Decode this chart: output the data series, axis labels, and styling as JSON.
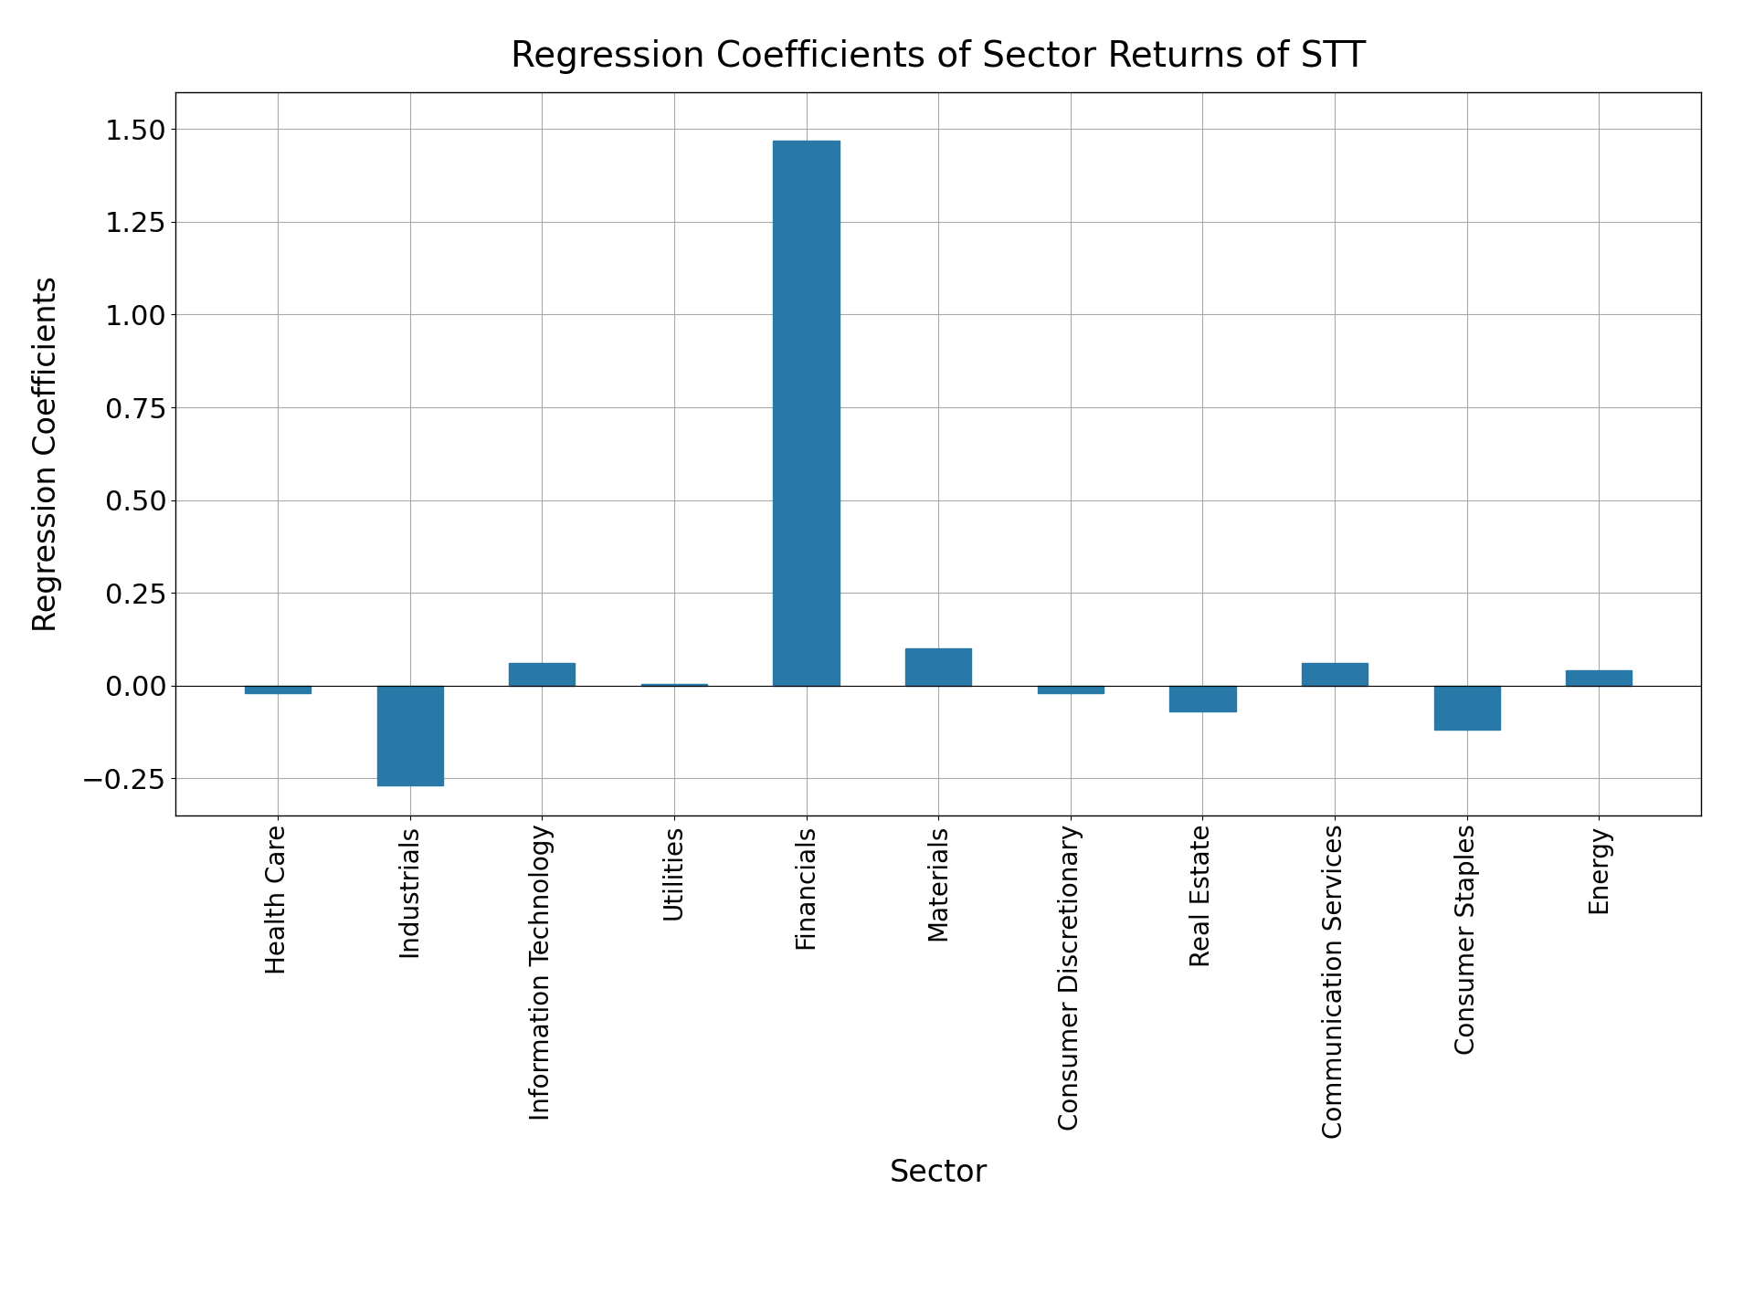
{
  "title": "Regression Coefficients of Sector Returns of STT",
  "xlabel": "Sector",
  "ylabel": "Regression Coefficients",
  "categories": [
    "Health Care",
    "Industrials",
    "Information Technology",
    "Utilities",
    "Financials",
    "Materials",
    "Consumer Discretionary",
    "Real Estate",
    "Communication Services",
    "Consumer Staples",
    "Energy"
  ],
  "values": [
    -0.02,
    -0.27,
    0.06,
    0.005,
    1.47,
    0.1,
    -0.02,
    -0.07,
    0.06,
    -0.12,
    0.04
  ],
  "bar_color": "#2878a8",
  "ylim": [
    -0.35,
    1.6
  ],
  "yticks": [
    -0.25,
    0.0,
    0.25,
    0.5,
    0.75,
    1.0,
    1.25,
    1.5
  ],
  "title_fontsize": 28,
  "label_fontsize": 24,
  "tick_fontsize": 22,
  "xtick_fontsize": 20,
  "background_color": "#ffffff",
  "grid_color": "#aaaaaa",
  "figsize": [
    19.2,
    14.4
  ],
  "dpi": 100,
  "bar_width": 0.5
}
